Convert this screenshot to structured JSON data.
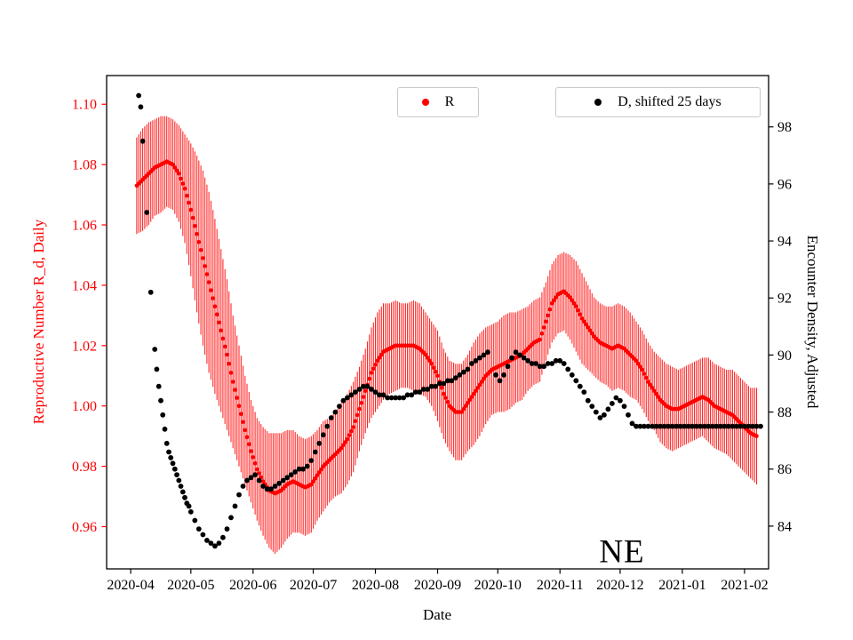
{
  "figure": {
    "xlabel": "Date",
    "ylabel_left": "Reproductive Number R_d, Daily",
    "ylabel_right": "Encounter Density, Adjusted",
    "annotation": "NE",
    "colors": {
      "r_series": "#ff0000",
      "d_series": "#000000",
      "axis": "#000000",
      "legend_border": "#c9c9c9"
    }
  },
  "legend": [
    {
      "label": "R",
      "marker_color": "#ff0000"
    },
    {
      "label": "D, shifted 25 days",
      "marker_color": "#000000"
    }
  ],
  "chart_data": {
    "type": "scatter",
    "title": "",
    "xlabel": "Date",
    "x_unit": "days since 2020-04-01",
    "xlim": [
      -12,
      318
    ],
    "x_ticks": {
      "days": [
        0,
        30,
        61,
        91,
        122,
        153,
        183,
        214,
        244,
        275,
        306
      ],
      "labels": [
        "2020-04",
        "2020-05",
        "2020-06",
        "2020-07",
        "2020-08",
        "2020-09",
        "2020-10",
        "2020-11",
        "2020-12",
        "2021-01",
        "2021-02"
      ]
    },
    "left_axis": {
      "label": "Reproductive Number R_d, Daily",
      "color": "#ff0000",
      "ticks": [
        0.96,
        0.98,
        1.0,
        1.02,
        1.04,
        1.06,
        1.08,
        1.1
      ],
      "ylim": [
        0.946,
        1.1095
      ]
    },
    "right_axis": {
      "label": "Encounter Density, Adjusted",
      "color": "#000000",
      "ticks": [
        84,
        86,
        88,
        90,
        92,
        94,
        96,
        98
      ],
      "ylim": [
        82.5,
        99.8
      ]
    },
    "legend_position": "upper center, two boxes",
    "grid": false,
    "annotations": [
      {
        "text": "NE",
        "x_day": 252,
        "y_left_axis": 0.953
      }
    ],
    "series": [
      {
        "name": "R",
        "axis": "left",
        "color": "#ff0000",
        "marker": "dot",
        "errorbars": true,
        "x": [
          3,
          6,
          9,
          12,
          15,
          18,
          21,
          24,
          27,
          30,
          33,
          36,
          39,
          42,
          45,
          48,
          51,
          54,
          57,
          60,
          63,
          66,
          69,
          72,
          75,
          78,
          81,
          84,
          87,
          90,
          93,
          96,
          99,
          102,
          105,
          108,
          111,
          114,
          117,
          120,
          123,
          126,
          129,
          132,
          135,
          138,
          141,
          144,
          147,
          150,
          153,
          156,
          159,
          162,
          165,
          168,
          171,
          174,
          177,
          180,
          183,
          186,
          189,
          192,
          195,
          198,
          201,
          204,
          207,
          210,
          213,
          216,
          219,
          222,
          225,
          228,
          231,
          234,
          237,
          240,
          243,
          246,
          249,
          252,
          255,
          258,
          261,
          264,
          267,
          270,
          273,
          276,
          279,
          282,
          285,
          288,
          291,
          294,
          297,
          300,
          303,
          306,
          309,
          312
        ],
        "y": [
          1.073,
          1.075,
          1.077,
          1.079,
          1.08,
          1.081,
          1.08,
          1.077,
          1.072,
          1.065,
          1.057,
          1.049,
          1.041,
          1.033,
          1.025,
          1.017,
          1.008,
          1.0,
          0.992,
          0.985,
          0.979,
          0.975,
          0.972,
          0.971,
          0.972,
          0.974,
          0.975,
          0.974,
          0.973,
          0.974,
          0.977,
          0.98,
          0.982,
          0.984,
          0.986,
          0.989,
          0.993,
          0.999,
          1.005,
          1.011,
          1.015,
          1.018,
          1.019,
          1.02,
          1.02,
          1.02,
          1.02,
          1.019,
          1.017,
          1.014,
          1.01,
          1.004,
          1.0,
          0.998,
          0.998,
          1.001,
          1.004,
          1.007,
          1.01,
          1.012,
          1.013,
          1.014,
          1.015,
          1.016,
          1.017,
          1.019,
          1.021,
          1.022,
          1.028,
          1.034,
          1.037,
          1.038,
          1.036,
          1.033,
          1.029,
          1.026,
          1.023,
          1.021,
          1.02,
          1.019,
          1.02,
          1.019,
          1.017,
          1.015,
          1.012,
          1.008,
          1.005,
          1.002,
          1.0,
          0.999,
          0.999,
          1.0,
          1.001,
          1.002,
          1.003,
          1.002,
          1.0,
          0.999,
          0.998,
          0.997,
          0.995,
          0.993,
          0.991,
          0.99
        ],
        "yerr": [
          0.016,
          0.017,
          0.017,
          0.016,
          0.016,
          0.015,
          0.015,
          0.016,
          0.018,
          0.022,
          0.026,
          0.029,
          0.03,
          0.029,
          0.027,
          0.025,
          0.022,
          0.02,
          0.018,
          0.017,
          0.017,
          0.018,
          0.019,
          0.02,
          0.019,
          0.018,
          0.017,
          0.016,
          0.016,
          0.016,
          0.015,
          0.015,
          0.014,
          0.014,
          0.015,
          0.015,
          0.015,
          0.014,
          0.014,
          0.015,
          0.016,
          0.016,
          0.015,
          0.015,
          0.014,
          0.014,
          0.015,
          0.015,
          0.014,
          0.014,
          0.015,
          0.015,
          0.015,
          0.016,
          0.016,
          0.016,
          0.017,
          0.017,
          0.016,
          0.015,
          0.015,
          0.016,
          0.016,
          0.015,
          0.015,
          0.014,
          0.014,
          0.014,
          0.013,
          0.013,
          0.013,
          0.013,
          0.014,
          0.015,
          0.015,
          0.014,
          0.013,
          0.013,
          0.013,
          0.014,
          0.014,
          0.014,
          0.014,
          0.013,
          0.013,
          0.013,
          0.013,
          0.014,
          0.014,
          0.014,
          0.013,
          0.013,
          0.013,
          0.013,
          0.013,
          0.014,
          0.014,
          0.014,
          0.014,
          0.015,
          0.015,
          0.015,
          0.015,
          0.016
        ]
      },
      {
        "name": "D, shifted 25 days",
        "axis": "right",
        "color": "#000000",
        "marker": "dot",
        "errorbars": false,
        "x": [
          4,
          5,
          6,
          8,
          10,
          12,
          13,
          14,
          15,
          16,
          17,
          18,
          19,
          20,
          21,
          22,
          23,
          24,
          25,
          26,
          27,
          28,
          29,
          30,
          32,
          34,
          36,
          38,
          40,
          42,
          44,
          46,
          48,
          50,
          52,
          54,
          56,
          58,
          60,
          62,
          64,
          66,
          68,
          70,
          72,
          74,
          76,
          78,
          80,
          82,
          84,
          86,
          88,
          90,
          92,
          94,
          96,
          98,
          100,
          102,
          104,
          106,
          108,
          110,
          112,
          114,
          116,
          118,
          120,
          122,
          124,
          126,
          128,
          130,
          132,
          134,
          136,
          138,
          140,
          142,
          144,
          146,
          148,
          150,
          152,
          154,
          156,
          158,
          160,
          162,
          164,
          166,
          168,
          170,
          172,
          174,
          176,
          178,
          182,
          184,
          186,
          188,
          190,
          192,
          194,
          196,
          198,
          200,
          202,
          204,
          206,
          208,
          210,
          212,
          214,
          216,
          218,
          220,
          222,
          224,
          226,
          228,
          230,
          232,
          234,
          236,
          238,
          240,
          242,
          244,
          246,
          248,
          250,
          252,
          254,
          256,
          258,
          260,
          262,
          264,
          266,
          268,
          270,
          272,
          274,
          276,
          278,
          280,
          282,
          284,
          286,
          288,
          290,
          292,
          294,
          296,
          298,
          300,
          302,
          304,
          306,
          308,
          310,
          312,
          314
        ],
        "y": [
          99.1,
          98.7,
          97.5,
          95.0,
          92.2,
          90.2,
          89.5,
          88.9,
          88.4,
          87.9,
          87.4,
          86.9,
          86.6,
          86.4,
          86.2,
          86.0,
          85.8,
          85.6,
          85.4,
          85.2,
          85.0,
          84.8,
          84.7,
          84.5,
          84.2,
          83.9,
          83.7,
          83.5,
          83.4,
          83.3,
          83.4,
          83.6,
          83.9,
          84.3,
          84.7,
          85.1,
          85.4,
          85.6,
          85.7,
          85.8,
          85.6,
          85.4,
          85.3,
          85.3,
          85.4,
          85.5,
          85.6,
          85.7,
          85.8,
          85.9,
          86.0,
          86.0,
          86.1,
          86.3,
          86.6,
          86.9,
          87.2,
          87.5,
          87.8,
          88.0,
          88.2,
          88.4,
          88.5,
          88.6,
          88.7,
          88.8,
          88.9,
          88.9,
          88.8,
          88.7,
          88.6,
          88.6,
          88.5,
          88.5,
          88.5,
          88.5,
          88.5,
          88.6,
          88.6,
          88.7,
          88.7,
          88.8,
          88.8,
          88.9,
          88.9,
          89.0,
          89.0,
          89.1,
          89.1,
          89.2,
          89.3,
          89.4,
          89.5,
          89.7,
          89.8,
          89.9,
          90.0,
          90.1,
          89.3,
          89.1,
          89.3,
          89.6,
          89.9,
          90.1,
          90.0,
          89.9,
          89.8,
          89.7,
          89.7,
          89.6,
          89.6,
          89.7,
          89.7,
          89.8,
          89.8,
          89.7,
          89.5,
          89.3,
          89.1,
          88.9,
          88.7,
          88.4,
          88.2,
          88.0,
          87.8,
          87.9,
          88.1,
          88.3,
          88.5,
          88.4,
          88.2,
          87.9,
          87.6,
          87.5,
          87.5,
          87.5,
          87.5,
          87.5,
          87.5,
          87.5,
          87.5,
          87.5,
          87.5,
          87.5,
          87.5,
          87.5,
          87.5,
          87.5,
          87.5,
          87.5,
          87.5,
          87.5,
          87.5,
          87.5,
          87.5,
          87.5,
          87.5,
          87.5,
          87.5,
          87.5,
          87.5,
          87.5,
          87.5,
          87.5,
          87.5
        ]
      }
    ]
  }
}
